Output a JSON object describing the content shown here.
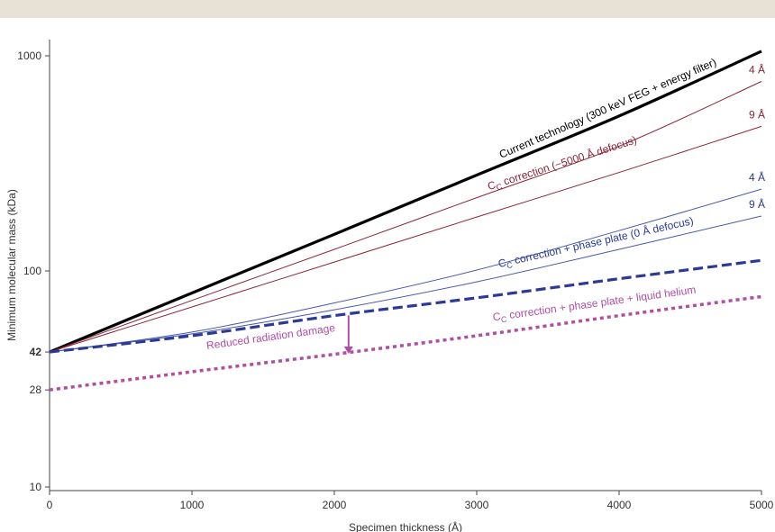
{
  "chart_data": {
    "type": "line",
    "xlabel": "Specimen thickness (Å)",
    "ylabel": "Minimum molecular mass (kDa)",
    "xlim": [
      0,
      5000
    ],
    "ylim": [
      10,
      1200
    ],
    "yscale": "log",
    "xticks": [
      0,
      1000,
      2000,
      3000,
      4000,
      5000
    ],
    "yticks": [
      10,
      28,
      42,
      100,
      1000
    ],
    "ytick_labels": [
      "10",
      "28",
      "42",
      "100",
      "1000"
    ],
    "series": [
      {
        "x": [
          0,
          1000,
          2000,
          3000,
          4000,
          5000
        ],
        "y": [
          42,
          79,
          148,
          279,
          525,
          1050
        ],
        "color": "#000000",
        "style": "solid-thick"
      },
      {
        "x": [
          0,
          1000,
          2000,
          3000,
          4000,
          5000
        ],
        "y": [
          42,
          73,
          126,
          219,
          380,
          760
        ],
        "color": "#8b2535",
        "style": "solid-thin"
      },
      {
        "x": [
          0,
          1000,
          2000,
          3000,
          4000,
          5000
        ],
        "y": [
          42,
          68,
          110,
          178,
          287,
          470
        ],
        "color": "#8b2535",
        "style": "solid-thin"
      },
      {
        "x": [
          0,
          1000,
          2000,
          3000,
          4000,
          5000
        ],
        "y": [
          42,
          52,
          71,
          101,
          154,
          240
        ],
        "color": "#4a5aae",
        "style": "solid-thin"
      },
      {
        "x": [
          0,
          1000,
          2000,
          3000,
          4000,
          5000
        ],
        "y": [
          42,
          51,
          66,
          89,
          126,
          180
        ],
        "color": "#4a5aae",
        "style": "solid-thin"
      },
      {
        "x": [
          0,
          1000,
          2000,
          3000,
          4000,
          5000
        ],
        "y": [
          42,
          50,
          62,
          75,
          92,
          112
        ],
        "color": "#2a3a96",
        "style": "dashed-thick"
      },
      {
        "x": [
          0,
          1000,
          2000,
          3000,
          4000,
          5000
        ],
        "y": [
          28,
          34,
          41,
          50,
          62,
          76
        ],
        "color": "#b04ea3",
        "style": "dotted-thick"
      }
    ],
    "annotations": [
      {
        "text": "Current technology (300 keV FEG + energy filter)",
        "color": "#000000"
      },
      {
        "text": "correction (−5000 Å defocus)",
        "color": "#8b2535"
      },
      {
        "text": "correction + phase plate (0 Å defocus)",
        "color": "#2a3a96"
      },
      {
        "text": "correction + phase plate + liquid helium",
        "color": "#b04ea3"
      },
      {
        "text": "Reduced radiation damage",
        "color": "#b04ea3"
      }
    ],
    "cc_symbol": "C",
    "cc_subscript": "C",
    "end_labels": [
      "4 Å",
      "9 Å",
      "4 Å",
      "9 Å"
    ],
    "grid": false
  }
}
